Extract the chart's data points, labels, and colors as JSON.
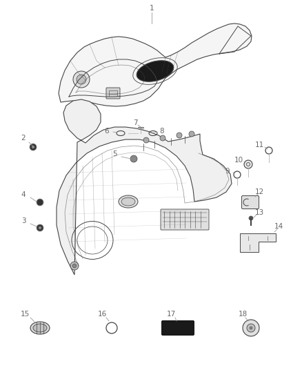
{
  "background_color": "#ffffff",
  "label_color": "#777777",
  "line_color": "#bbbbbb",
  "part_line_color": "#444444",
  "fig_width": 4.38,
  "fig_height": 5.33,
  "dpi": 100
}
